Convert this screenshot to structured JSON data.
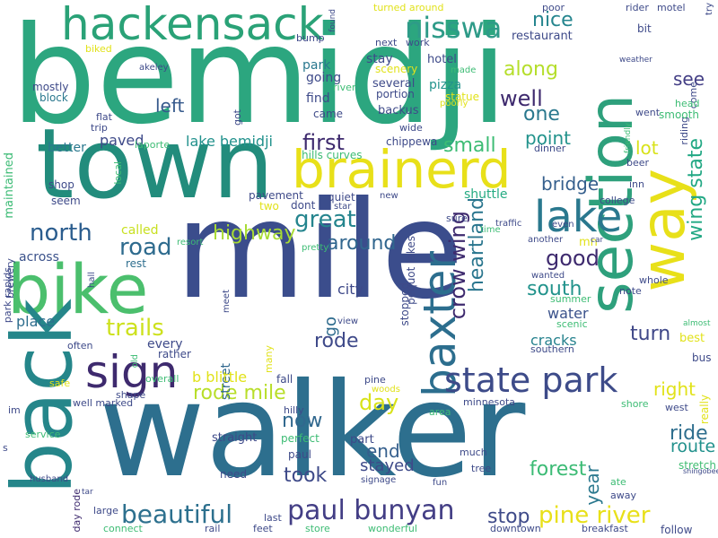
{
  "cloud": {
    "words": [
      {
        "text": "bemidji",
        "color": "#2ca67f"
      },
      {
        "text": "mile",
        "color": "#3b4d8c"
      },
      {
        "text": "walker",
        "color": "#2d6f8e"
      },
      {
        "text": "town",
        "color": "#228c7c"
      },
      {
        "text": "bike",
        "color": "#4bbf6d"
      },
      {
        "text": "back",
        "color": "#25868a"
      },
      {
        "text": "hackensack",
        "color": "#2aa277"
      },
      {
        "text": "brainerd",
        "color": "#e8e019"
      },
      {
        "text": "section",
        "color": "#2ea07c"
      },
      {
        "text": "lake",
        "color": "#2a788e"
      },
      {
        "text": "way",
        "color": "#e8e019"
      },
      {
        "text": "baxter",
        "color": "#2c6e8e"
      },
      {
        "text": "sign",
        "color": "#3e2a6e"
      },
      {
        "text": "state park",
        "color": "#3d4b89"
      },
      {
        "text": "paul bunyan",
        "color": "#433e85"
      },
      {
        "text": "nisswa",
        "color": "#2e9b88"
      },
      {
        "text": "beautiful",
        "color": "#2d708e"
      },
      {
        "text": "pine river",
        "color": "#e8e019"
      },
      {
        "text": "crow wing",
        "color": "#3e2a6e"
      },
      {
        "text": "heartland",
        "color": "#2a768e"
      },
      {
        "text": "wing state",
        "color": "#22a884"
      },
      {
        "text": "trails",
        "color": "#cde11d"
      },
      {
        "text": "rode mile",
        "color": "#b8de29"
      },
      {
        "text": "great",
        "color": "#25858e"
      },
      {
        "text": "north",
        "color": "#2b5d8e"
      },
      {
        "text": "road",
        "color": "#2e6b8e"
      },
      {
        "text": "highway",
        "color": "#a8db34"
      },
      {
        "text": "around",
        "color": "#31668e"
      },
      {
        "text": "good",
        "color": "#3e2a6e"
      },
      {
        "text": "south",
        "color": "#22938c"
      },
      {
        "text": "nice",
        "color": "#25858e"
      },
      {
        "text": "along",
        "color": "#b5de2b"
      },
      {
        "text": "well",
        "color": "#3e2a6e"
      },
      {
        "text": "one",
        "color": "#2a788e"
      },
      {
        "text": "left",
        "color": "#375a8c"
      },
      {
        "text": "first",
        "color": "#3e2a6e"
      },
      {
        "text": "small",
        "color": "#3dbc74"
      },
      {
        "text": "point",
        "color": "#22938c"
      },
      {
        "text": "lot",
        "color": "#d8e219"
      },
      {
        "text": "bridge",
        "color": "#355f8d"
      },
      {
        "text": "see",
        "color": "#433e85"
      },
      {
        "text": "rode",
        "color": "#3e4989"
      },
      {
        "text": "turn",
        "color": "#3f4788"
      },
      {
        "text": "day",
        "color": "#d8e219"
      },
      {
        "text": "right",
        "color": "#e1e21a"
      },
      {
        "text": "ride",
        "color": "#2e6e8e"
      },
      {
        "text": "route",
        "color": "#21918c"
      },
      {
        "text": "forest",
        "color": "#3cbb75"
      },
      {
        "text": "stop",
        "color": "#3e4a89"
      },
      {
        "text": "end",
        "color": "#355f8d"
      },
      {
        "text": "took",
        "color": "#3e4a89"
      },
      {
        "text": "now",
        "color": "#31688e"
      },
      {
        "text": "year",
        "color": "#2a788e"
      },
      {
        "text": "stayed",
        "color": "#3e4a89"
      },
      {
        "text": "shuttle",
        "color": "#25ab82"
      },
      {
        "text": "go",
        "color": "#2f6c8e"
      },
      {
        "text": "city",
        "color": "#3e4989"
      },
      {
        "text": "water",
        "color": "#3b528b"
      },
      {
        "text": "cracks",
        "color": "#26828e"
      },
      {
        "text": "stretch",
        "color": "#40bd72"
      },
      {
        "text": "day rode",
        "color": "#3e2a6e"
      },
      {
        "text": "lake bemidji",
        "color": "#21918c"
      },
      {
        "text": "paved",
        "color": "#3e4a89"
      },
      {
        "text": "place",
        "color": "#2e6e8e"
      },
      {
        "text": "street",
        "color": "#31688e"
      },
      {
        "text": "b blittle",
        "color": "#e1e21a"
      },
      {
        "text": "every",
        "color": "#3e4a89"
      },
      {
        "text": "called",
        "color": "#c8e020"
      },
      {
        "text": "across",
        "color": "#3b528b"
      },
      {
        "text": "rest",
        "color": "#2e6e8e"
      },
      {
        "text": "shop",
        "color": "#3e4a89"
      },
      {
        "text": "better",
        "color": "#2a788e"
      },
      {
        "text": "maintained",
        "color": "#3cbb75"
      },
      {
        "text": "mostly",
        "color": "#3e4a89"
      },
      {
        "text": "block",
        "color": "#2a788e"
      },
      {
        "text": "park",
        "color": "#2a788e"
      },
      {
        "text": "going",
        "color": "#3e4a89"
      },
      {
        "text": "find",
        "color": "#3e4a89"
      },
      {
        "text": "came",
        "color": "#3e4a89"
      },
      {
        "text": "stay",
        "color": "#3e4a89"
      },
      {
        "text": "several",
        "color": "#3e4a89"
      },
      {
        "text": "portion",
        "color": "#3e4a89"
      },
      {
        "text": "backus",
        "color": "#3e4a89"
      },
      {
        "text": "pizza",
        "color": "#22938c"
      },
      {
        "text": "statue",
        "color": "#e1e21a"
      },
      {
        "text": "poorly",
        "color": "#e1e21a"
      },
      {
        "text": "scenery",
        "color": "#e1e21a"
      },
      {
        "text": "hotel",
        "color": "#3e4a89"
      },
      {
        "text": "restaurant",
        "color": "#3e4a89"
      },
      {
        "text": "made",
        "color": "#3dbc74"
      },
      {
        "text": "biked",
        "color": "#e1e21a"
      },
      {
        "text": "akeley",
        "color": "#3e4a89"
      },
      {
        "text": "flat",
        "color": "#3e4a89"
      },
      {
        "text": "trip",
        "color": "#3e4a89"
      },
      {
        "text": "laporte",
        "color": "#3dbc74"
      },
      {
        "text": "hills curves",
        "color": "#3dbc74"
      },
      {
        "text": "chippewa",
        "color": "#3e4a89"
      },
      {
        "text": "wide",
        "color": "#3e4a89"
      },
      {
        "text": "dinner",
        "color": "#3e4a89"
      },
      {
        "text": "riding",
        "color": "#3e4a89"
      },
      {
        "text": "come",
        "color": "#3e4a89"
      },
      {
        "text": "went",
        "color": "#3e4a89"
      },
      {
        "text": "head",
        "color": "#3dbc74"
      },
      {
        "text": "smooth",
        "color": "#3dbc74"
      },
      {
        "text": "friendly",
        "color": "#3dbc74"
      },
      {
        "text": "beer",
        "color": "#3e4a89"
      },
      {
        "text": "inn",
        "color": "#3e4a89"
      },
      {
        "text": "college",
        "color": "#3e4a89"
      },
      {
        "text": "even",
        "color": "#3e4a89"
      },
      {
        "text": "traffic",
        "color": "#3e4a89"
      },
      {
        "text": "mn",
        "color": "#e1e21a"
      },
      {
        "text": "car",
        "color": "#3e4a89"
      },
      {
        "text": "another",
        "color": "#3e4a89"
      },
      {
        "text": "wanted",
        "color": "#3e4a89"
      },
      {
        "text": "whole",
        "color": "#3e4a89"
      },
      {
        "text": "note",
        "color": "#3e4a89"
      },
      {
        "text": "summer",
        "color": "#3dbc74"
      },
      {
        "text": "scenic",
        "color": "#3dbc74"
      },
      {
        "text": "southern",
        "color": "#3e4a89"
      },
      {
        "text": "best",
        "color": "#e1e21a"
      },
      {
        "text": "almost",
        "color": "#3dbc74"
      },
      {
        "text": "bus",
        "color": "#3e4a89"
      },
      {
        "text": "really",
        "color": "#e1e21a"
      },
      {
        "text": "follow",
        "color": "#3e4a89"
      },
      {
        "text": "west",
        "color": "#3e4a89"
      },
      {
        "text": "shingobee",
        "color": "#3e4a89"
      },
      {
        "text": "shore",
        "color": "#3dbc74"
      },
      {
        "text": "area",
        "color": "#3dbc74"
      },
      {
        "text": "minnesota",
        "color": "#3e4a89"
      },
      {
        "text": "ate",
        "color": "#3dbc74"
      },
      {
        "text": "away",
        "color": "#3e4a89"
      },
      {
        "text": "breakfast",
        "color": "#3e4a89"
      },
      {
        "text": "fun",
        "color": "#3e4a89"
      },
      {
        "text": "downtown",
        "color": "#3e4a89"
      },
      {
        "text": "tree",
        "color": "#3e4a89"
      },
      {
        "text": "much",
        "color": "#3e4a89"
      },
      {
        "text": "part",
        "color": "#3e4a89"
      },
      {
        "text": "signage",
        "color": "#3e4a89"
      },
      {
        "text": "wonderful",
        "color": "#3dbc74"
      },
      {
        "text": "store",
        "color": "#3dbc74"
      },
      {
        "text": "feet",
        "color": "#3e4a89"
      },
      {
        "text": "last",
        "color": "#3e4a89"
      },
      {
        "text": "rail",
        "color": "#3e4a89"
      },
      {
        "text": "connect",
        "color": "#3dbc74"
      },
      {
        "text": "large",
        "color": "#3e4a89"
      },
      {
        "text": "tar",
        "color": "#3e4a89"
      },
      {
        "text": "husband",
        "color": "#3e4a89"
      },
      {
        "text": "need",
        "color": "#3e4a89"
      },
      {
        "text": "straight",
        "color": "#3e4a89"
      },
      {
        "text": "perfect",
        "color": "#3dbc74"
      },
      {
        "text": "paul",
        "color": "#3e4a89"
      },
      {
        "text": "service",
        "color": "#3dbc74"
      },
      {
        "text": "im",
        "color": "#3e4a89"
      },
      {
        "text": "s",
        "color": "#3e4a89"
      },
      {
        "text": "well marked",
        "color": "#3e4a89"
      },
      {
        "text": "shape",
        "color": "#3e4a89"
      },
      {
        "text": "safe",
        "color": "#e1e21a"
      },
      {
        "text": "overall",
        "color": "#3dbc74"
      },
      {
        "text": "rather",
        "color": "#3e4a89"
      },
      {
        "text": "often",
        "color": "#3e4a89"
      },
      {
        "text": "old",
        "color": "#3dbc74"
      },
      {
        "text": "many",
        "color": "#e1e21a"
      },
      {
        "text": "fall",
        "color": "#3e4a89"
      },
      {
        "text": "hilly",
        "color": "#3e4a89"
      },
      {
        "text": "woods",
        "color": "#e1e21a"
      },
      {
        "text": "pine",
        "color": "#3e4a89"
      },
      {
        "text": "view",
        "color": "#3e4a89"
      },
      {
        "text": "meet",
        "color": "#3e4a89"
      },
      {
        "text": "hall",
        "color": "#3e4a89"
      },
      {
        "text": "park rapids",
        "color": "#3e4a89"
      },
      {
        "text": "brewery",
        "color": "#3e4a89"
      },
      {
        "text": "seem",
        "color": "#3e4a89"
      },
      {
        "text": "local",
        "color": "#3dbc74"
      },
      {
        "text": "resort",
        "color": "#3dbc74"
      },
      {
        "text": "dont",
        "color": "#3e4a89"
      },
      {
        "text": "pavement",
        "color": "#3e4a89"
      },
      {
        "text": "two",
        "color": "#e1e21a"
      },
      {
        "text": "quiet",
        "color": "#3e4a89"
      },
      {
        "text": "star",
        "color": "#3e4a89"
      },
      {
        "text": "new",
        "color": "#3e4a89"
      },
      {
        "text": "stopped",
        "color": "#3e4a89"
      },
      {
        "text": "pequot lakes",
        "color": "#3e4a89"
      },
      {
        "text": "pretty",
        "color": "#3dbc74"
      },
      {
        "text": "sure",
        "color": "#3e4a89"
      },
      {
        "text": "time",
        "color": "#3dbc74"
      },
      {
        "text": "work",
        "color": "#3e4a89"
      },
      {
        "text": "next",
        "color": "#3e4a89"
      },
      {
        "text": "bump",
        "color": "#3e4a89"
      },
      {
        "text": "turned around",
        "color": "#e1e21a"
      },
      {
        "text": "found",
        "color": "#3e4a89"
      },
      {
        "text": "poor",
        "color": "#3e4a89"
      },
      {
        "text": "rider",
        "color": "#3e4a89"
      },
      {
        "text": "motel",
        "color": "#3e4a89"
      },
      {
        "text": "bit",
        "color": "#3e4a89"
      },
      {
        "text": "try",
        "color": "#3e4a89"
      },
      {
        "text": "weather",
        "color": "#3e4a89"
      },
      {
        "text": "river",
        "color": "#3dbc74"
      },
      {
        "text": "got",
        "color": "#3e4a89"
      },
      {
        "text": "short",
        "color": "#3dbc74"
      }
    ]
  }
}
